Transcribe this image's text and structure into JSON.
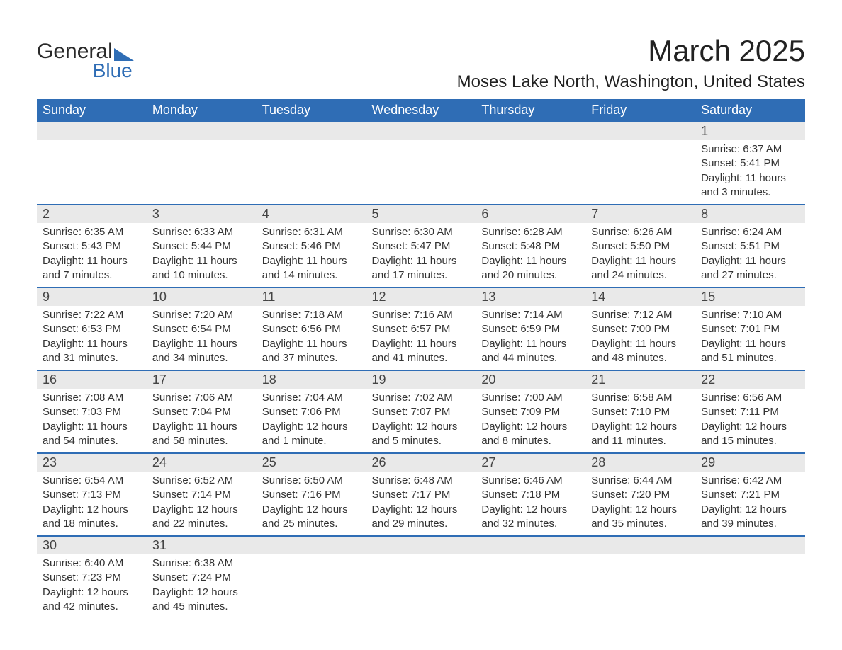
{
  "logo": {
    "text1": "General",
    "text2": "Blue"
  },
  "title": "March 2025",
  "location": "Moses Lake North, Washington, United States",
  "colors": {
    "header_bg": "#2f6db5",
    "header_fg": "#ffffff",
    "daynum_bg": "#e9e9e9",
    "row_divider": "#2f6db5",
    "text": "#333333",
    "background": "#ffffff"
  },
  "day_headers": [
    "Sunday",
    "Monday",
    "Tuesday",
    "Wednesday",
    "Thursday",
    "Friday",
    "Saturday"
  ],
  "weeks": [
    [
      null,
      null,
      null,
      null,
      null,
      null,
      {
        "n": "1",
        "sr": "Sunrise: 6:37 AM",
        "ss": "Sunset: 5:41 PM",
        "dl": "Daylight: 11 hours and 3 minutes."
      }
    ],
    [
      {
        "n": "2",
        "sr": "Sunrise: 6:35 AM",
        "ss": "Sunset: 5:43 PM",
        "dl": "Daylight: 11 hours and 7 minutes."
      },
      {
        "n": "3",
        "sr": "Sunrise: 6:33 AM",
        "ss": "Sunset: 5:44 PM",
        "dl": "Daylight: 11 hours and 10 minutes."
      },
      {
        "n": "4",
        "sr": "Sunrise: 6:31 AM",
        "ss": "Sunset: 5:46 PM",
        "dl": "Daylight: 11 hours and 14 minutes."
      },
      {
        "n": "5",
        "sr": "Sunrise: 6:30 AM",
        "ss": "Sunset: 5:47 PM",
        "dl": "Daylight: 11 hours and 17 minutes."
      },
      {
        "n": "6",
        "sr": "Sunrise: 6:28 AM",
        "ss": "Sunset: 5:48 PM",
        "dl": "Daylight: 11 hours and 20 minutes."
      },
      {
        "n": "7",
        "sr": "Sunrise: 6:26 AM",
        "ss": "Sunset: 5:50 PM",
        "dl": "Daylight: 11 hours and 24 minutes."
      },
      {
        "n": "8",
        "sr": "Sunrise: 6:24 AM",
        "ss": "Sunset: 5:51 PM",
        "dl": "Daylight: 11 hours and 27 minutes."
      }
    ],
    [
      {
        "n": "9",
        "sr": "Sunrise: 7:22 AM",
        "ss": "Sunset: 6:53 PM",
        "dl": "Daylight: 11 hours and 31 minutes."
      },
      {
        "n": "10",
        "sr": "Sunrise: 7:20 AM",
        "ss": "Sunset: 6:54 PM",
        "dl": "Daylight: 11 hours and 34 minutes."
      },
      {
        "n": "11",
        "sr": "Sunrise: 7:18 AM",
        "ss": "Sunset: 6:56 PM",
        "dl": "Daylight: 11 hours and 37 minutes."
      },
      {
        "n": "12",
        "sr": "Sunrise: 7:16 AM",
        "ss": "Sunset: 6:57 PM",
        "dl": "Daylight: 11 hours and 41 minutes."
      },
      {
        "n": "13",
        "sr": "Sunrise: 7:14 AM",
        "ss": "Sunset: 6:59 PM",
        "dl": "Daylight: 11 hours and 44 minutes."
      },
      {
        "n": "14",
        "sr": "Sunrise: 7:12 AM",
        "ss": "Sunset: 7:00 PM",
        "dl": "Daylight: 11 hours and 48 minutes."
      },
      {
        "n": "15",
        "sr": "Sunrise: 7:10 AM",
        "ss": "Sunset: 7:01 PM",
        "dl": "Daylight: 11 hours and 51 minutes."
      }
    ],
    [
      {
        "n": "16",
        "sr": "Sunrise: 7:08 AM",
        "ss": "Sunset: 7:03 PM",
        "dl": "Daylight: 11 hours and 54 minutes."
      },
      {
        "n": "17",
        "sr": "Sunrise: 7:06 AM",
        "ss": "Sunset: 7:04 PM",
        "dl": "Daylight: 11 hours and 58 minutes."
      },
      {
        "n": "18",
        "sr": "Sunrise: 7:04 AM",
        "ss": "Sunset: 7:06 PM",
        "dl": "Daylight: 12 hours and 1 minute."
      },
      {
        "n": "19",
        "sr": "Sunrise: 7:02 AM",
        "ss": "Sunset: 7:07 PM",
        "dl": "Daylight: 12 hours and 5 minutes."
      },
      {
        "n": "20",
        "sr": "Sunrise: 7:00 AM",
        "ss": "Sunset: 7:09 PM",
        "dl": "Daylight: 12 hours and 8 minutes."
      },
      {
        "n": "21",
        "sr": "Sunrise: 6:58 AM",
        "ss": "Sunset: 7:10 PM",
        "dl": "Daylight: 12 hours and 11 minutes."
      },
      {
        "n": "22",
        "sr": "Sunrise: 6:56 AM",
        "ss": "Sunset: 7:11 PM",
        "dl": "Daylight: 12 hours and 15 minutes."
      }
    ],
    [
      {
        "n": "23",
        "sr": "Sunrise: 6:54 AM",
        "ss": "Sunset: 7:13 PM",
        "dl": "Daylight: 12 hours and 18 minutes."
      },
      {
        "n": "24",
        "sr": "Sunrise: 6:52 AM",
        "ss": "Sunset: 7:14 PM",
        "dl": "Daylight: 12 hours and 22 minutes."
      },
      {
        "n": "25",
        "sr": "Sunrise: 6:50 AM",
        "ss": "Sunset: 7:16 PM",
        "dl": "Daylight: 12 hours and 25 minutes."
      },
      {
        "n": "26",
        "sr": "Sunrise: 6:48 AM",
        "ss": "Sunset: 7:17 PM",
        "dl": "Daylight: 12 hours and 29 minutes."
      },
      {
        "n": "27",
        "sr": "Sunrise: 6:46 AM",
        "ss": "Sunset: 7:18 PM",
        "dl": "Daylight: 12 hours and 32 minutes."
      },
      {
        "n": "28",
        "sr": "Sunrise: 6:44 AM",
        "ss": "Sunset: 7:20 PM",
        "dl": "Daylight: 12 hours and 35 minutes."
      },
      {
        "n": "29",
        "sr": "Sunrise: 6:42 AM",
        "ss": "Sunset: 7:21 PM",
        "dl": "Daylight: 12 hours and 39 minutes."
      }
    ],
    [
      {
        "n": "30",
        "sr": "Sunrise: 6:40 AM",
        "ss": "Sunset: 7:23 PM",
        "dl": "Daylight: 12 hours and 42 minutes."
      },
      {
        "n": "31",
        "sr": "Sunrise: 6:38 AM",
        "ss": "Sunset: 7:24 PM",
        "dl": "Daylight: 12 hours and 45 minutes."
      },
      null,
      null,
      null,
      null,
      null
    ]
  ]
}
